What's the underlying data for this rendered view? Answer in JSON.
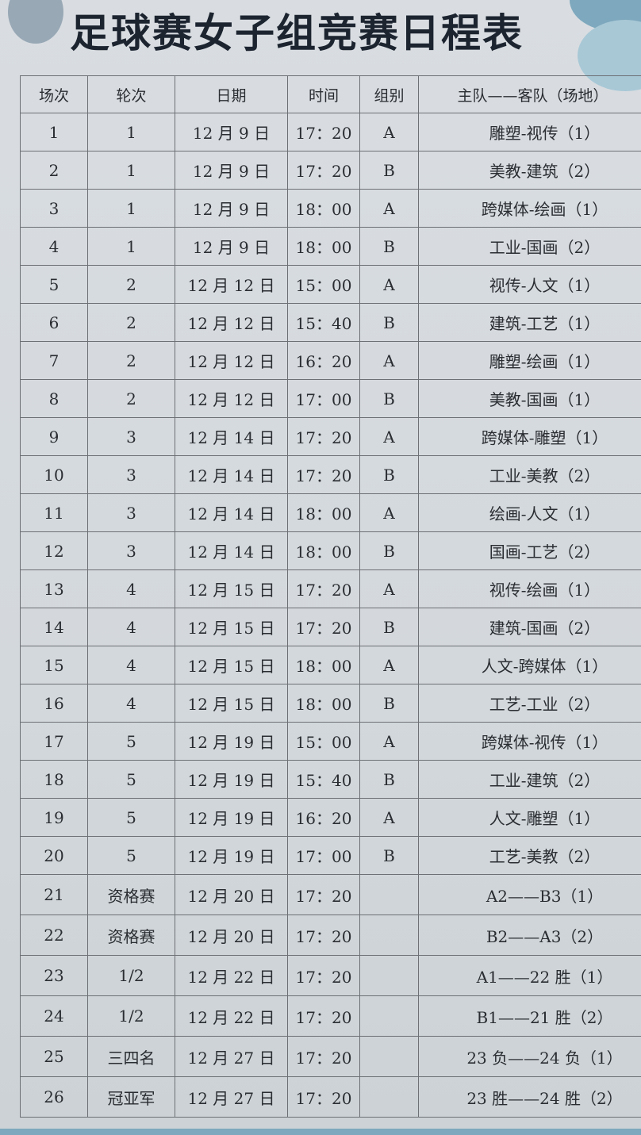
{
  "title": "足球赛女子组竞赛日程表",
  "headers": [
    "场次",
    "轮次",
    "日期",
    "时间",
    "组别",
    "主队——客队（场地）"
  ],
  "rows": [
    [
      "1",
      "1",
      "12 月 9 日",
      "17：20",
      "A",
      "雕塑-视传（1）"
    ],
    [
      "2",
      "1",
      "12 月 9 日",
      "17：20",
      "B",
      "美教-建筑（2）"
    ],
    [
      "3",
      "1",
      "12 月 9 日",
      "18：00",
      "A",
      "跨媒体-绘画（1）"
    ],
    [
      "4",
      "1",
      "12 月 9 日",
      "18：00",
      "B",
      "工业-国画（2）"
    ],
    [
      "5",
      "2",
      "12 月 12 日",
      "15：00",
      "A",
      "视传-人文（1）"
    ],
    [
      "6",
      "2",
      "12 月 12 日",
      "15：40",
      "B",
      "建筑-工艺（1）"
    ],
    [
      "7",
      "2",
      "12 月 12 日",
      "16：20",
      "A",
      "雕塑-绘画（1）"
    ],
    [
      "8",
      "2",
      "12 月 12 日",
      "17：00",
      "B",
      "美教-国画（1）"
    ],
    [
      "9",
      "3",
      "12 月 14 日",
      "17：20",
      "A",
      "跨媒体-雕塑（1）"
    ],
    [
      "10",
      "3",
      "12 月 14 日",
      "17：20",
      "B",
      "工业-美教（2）"
    ],
    [
      "11",
      "3",
      "12 月 14 日",
      "18：00",
      "A",
      "绘画-人文（1）"
    ],
    [
      "12",
      "3",
      "12 月 14 日",
      "18：00",
      "B",
      "国画-工艺（2）"
    ],
    [
      "13",
      "4",
      "12 月 15 日",
      "17：20",
      "A",
      "视传-绘画（1）"
    ],
    [
      "14",
      "4",
      "12 月 15 日",
      "17：20",
      "B",
      "建筑-国画（2）"
    ],
    [
      "15",
      "4",
      "12 月 15 日",
      "18：00",
      "A",
      "人文-跨媒体（1）"
    ],
    [
      "16",
      "4",
      "12 月 15 日",
      "18：00",
      "B",
      "工艺-工业（2）"
    ],
    [
      "17",
      "5",
      "12 月 19 日",
      "15：00",
      "A",
      "跨媒体-视传（1）"
    ],
    [
      "18",
      "5",
      "12 月 19 日",
      "15：40",
      "B",
      "工业-建筑（2）"
    ],
    [
      "19",
      "5",
      "12 月 19 日",
      "16：20",
      "A",
      "人文-雕塑（1）"
    ],
    [
      "20",
      "5",
      "12 月 19 日",
      "17：00",
      "B",
      "工艺-美教（2）"
    ],
    [
      "21",
      "资格赛",
      "12 月 20 日",
      "17：20",
      "",
      "A2——B3（1）"
    ],
    [
      "22",
      "资格赛",
      "12 月 20 日",
      "17：20",
      "",
      "B2——A3（2）"
    ],
    [
      "23",
      "1/2",
      "12 月 22 日",
      "17：20",
      "",
      "A1——22 胜（1）"
    ],
    [
      "24",
      "1/2",
      "12 月 22 日",
      "17：20",
      "",
      "B1——21 胜（2）"
    ],
    [
      "25",
      "三四名",
      "12 月 27 日",
      "17：20",
      "",
      "23 负——24 负（1）"
    ],
    [
      "26",
      "冠亚军",
      "12 月 27 日",
      "17：20",
      "",
      "23 胜——24 胜（2）"
    ]
  ]
}
